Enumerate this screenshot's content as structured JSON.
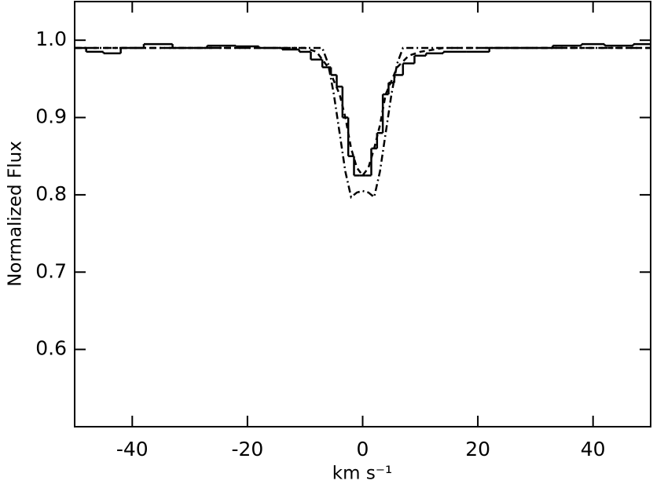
{
  "chart_data": {
    "type": "line",
    "xlabel": "km s⁻¹",
    "ylabel": "Normalized Flux",
    "xlim": [
      -50,
      50
    ],
    "ylim": [
      0.5,
      1.05
    ],
    "xticks": [
      -40,
      -20,
      0,
      20,
      40
    ],
    "yticks": [
      0.6,
      0.7,
      0.8,
      0.9,
      {
        "value": 1,
        "label": "1.0"
      }
    ],
    "series": [
      {
        "color": "#000000",
        "style": "step",
        "x": [
          -50,
          -46,
          -44,
          -40,
          -36,
          -30,
          -24,
          -20,
          -16,
          -12,
          -10,
          -8,
          -6,
          -5,
          -4,
          -3,
          -2,
          -1,
          0,
          1,
          2,
          3,
          4,
          5,
          6,
          8,
          10,
          12,
          16,
          20,
          24,
          30,
          36,
          40,
          44,
          50
        ],
        "values": [
          0.99,
          0.985,
          0.983,
          0.99,
          0.995,
          0.99,
          0.993,
          0.992,
          0.99,
          0.988,
          0.985,
          0.975,
          0.965,
          0.955,
          0.94,
          0.9,
          0.85,
          0.825,
          0.825,
          0.825,
          0.86,
          0.88,
          0.93,
          0.945,
          0.955,
          0.97,
          0.98,
          0.983,
          0.985,
          0.985,
          0.99,
          0.99,
          0.993,
          0.995,
          0.993,
          0.995
        ]
      },
      {
        "color": "#000000",
        "style": "dashed",
        "x": [
          -50,
          -10,
          -8,
          -6,
          -4,
          -3,
          -2,
          -1,
          0,
          1,
          2,
          3,
          4,
          6,
          8,
          10,
          14,
          50
        ],
        "values": [
          0.99,
          0.99,
          0.985,
          0.965,
          0.93,
          0.9,
          0.86,
          0.835,
          0.825,
          0.835,
          0.86,
          0.89,
          0.93,
          0.965,
          0.98,
          0.985,
          0.99,
          0.99
        ]
      },
      {
        "color": "#000000",
        "style": "dashdot",
        "x": [
          -50,
          -7,
          -6,
          -5,
          -4,
          -3,
          -2,
          -1,
          0,
          1,
          2,
          3,
          4,
          5,
          6,
          7,
          50
        ],
        "values": [
          0.99,
          0.99,
          0.97,
          0.93,
          0.88,
          0.83,
          0.797,
          0.803,
          0.805,
          0.803,
          0.797,
          0.83,
          0.88,
          0.93,
          0.97,
          0.99,
          0.99
        ]
      }
    ]
  }
}
